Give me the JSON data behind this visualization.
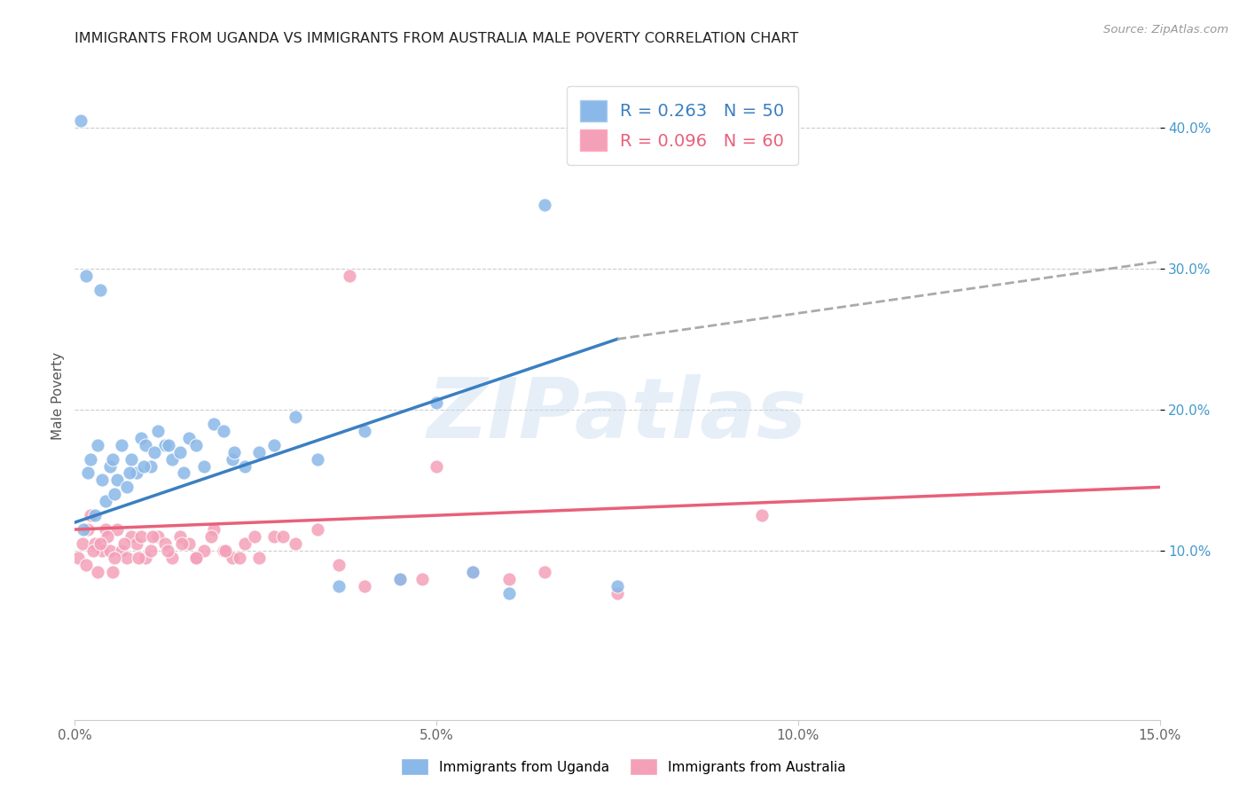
{
  "title": "IMMIGRANTS FROM UGANDA VS IMMIGRANTS FROM AUSTRALIA MALE POVERTY CORRELATION CHART",
  "source": "Source: ZipAtlas.com",
  "xlabel_ticks": [
    "0.0%",
    "5.0%",
    "10.0%",
    "15.0%"
  ],
  "xlabel_tick_vals": [
    0.0,
    5.0,
    10.0,
    15.0
  ],
  "ylabel_ticks": [
    "10.0%",
    "20.0%",
    "30.0%",
    "40.0%"
  ],
  "ylabel_tick_vals": [
    10.0,
    20.0,
    30.0,
    40.0
  ],
  "ylabel": "Male Poverty",
  "xlim": [
    0.0,
    15.0
  ],
  "ylim": [
    -2.0,
    44.0
  ],
  "uganda_color": "#8ab8e8",
  "australia_color": "#f4a0b8",
  "uganda_line_color": "#3a7fc1",
  "australia_line_color": "#e8607a",
  "dashed_line_color": "#aaaaaa",
  "watermark": "ZIPatlas",
  "watermark_color": "#c8ddf0",
  "legend_uganda_label": "R = 0.263   N = 50",
  "legend_australia_label": "R = 0.096   N = 60",
  "legend_label1": "Immigrants from Uganda",
  "legend_label2": "Immigrants from Australia",
  "uganda_line_x0": 0.0,
  "uganda_line_y0": 12.0,
  "uganda_line_x1": 7.5,
  "uganda_line_y1": 25.0,
  "australia_line_x0": 0.0,
  "australia_line_y0": 11.5,
  "australia_line_x1": 15.0,
  "australia_line_y1": 14.5,
  "dash_x0": 7.5,
  "dash_y0": 25.0,
  "dash_x1": 15.0,
  "dash_y1": 30.5,
  "uganda_x": [
    0.08,
    0.12,
    0.18,
    0.22,
    0.28,
    0.32,
    0.38,
    0.42,
    0.48,
    0.52,
    0.58,
    0.65,
    0.72,
    0.78,
    0.85,
    0.92,
    0.98,
    1.05,
    1.15,
    1.25,
    1.35,
    1.45,
    1.58,
    1.68,
    1.78,
    1.92,
    2.05,
    2.18,
    2.35,
    2.55,
    2.75,
    3.05,
    3.35,
    3.65,
    4.0,
    4.5,
    5.0,
    5.5,
    6.0,
    6.5,
    7.5,
    0.15,
    0.35,
    0.55,
    0.75,
    0.95,
    1.1,
    1.3,
    1.5,
    2.2
  ],
  "uganda_y": [
    40.5,
    11.5,
    15.5,
    16.5,
    12.5,
    17.5,
    15.0,
    13.5,
    16.0,
    16.5,
    15.0,
    17.5,
    14.5,
    16.5,
    15.5,
    18.0,
    17.5,
    16.0,
    18.5,
    17.5,
    16.5,
    17.0,
    18.0,
    17.5,
    16.0,
    19.0,
    18.5,
    16.5,
    16.0,
    17.0,
    17.5,
    19.5,
    16.5,
    7.5,
    18.5,
    8.0,
    20.5,
    8.5,
    7.0,
    34.5,
    7.5,
    29.5,
    28.5,
    14.0,
    15.5,
    16.0,
    17.0,
    17.5,
    15.5,
    17.0
  ],
  "australia_x": [
    0.05,
    0.1,
    0.15,
    0.18,
    0.22,
    0.28,
    0.32,
    0.38,
    0.42,
    0.48,
    0.52,
    0.58,
    0.65,
    0.72,
    0.78,
    0.85,
    0.92,
    0.98,
    1.05,
    1.15,
    1.25,
    1.35,
    1.45,
    1.58,
    1.68,
    1.78,
    1.92,
    2.05,
    2.18,
    2.35,
    2.55,
    2.75,
    3.05,
    3.35,
    3.65,
    4.0,
    4.5,
    5.0,
    5.5,
    6.0,
    7.5,
    9.5,
    0.25,
    0.45,
    0.68,
    0.88,
    1.08,
    1.28,
    1.48,
    1.68,
    1.88,
    2.08,
    2.28,
    2.48,
    3.8,
    4.8,
    6.5,
    0.35,
    0.55,
    2.88
  ],
  "australia_y": [
    9.5,
    10.5,
    9.0,
    11.5,
    12.5,
    10.5,
    8.5,
    10.0,
    11.5,
    10.0,
    8.5,
    11.5,
    10.0,
    9.5,
    11.0,
    10.5,
    11.0,
    9.5,
    10.0,
    11.0,
    10.5,
    9.5,
    11.0,
    10.5,
    9.5,
    10.0,
    11.5,
    10.0,
    9.5,
    10.5,
    9.5,
    11.0,
    10.5,
    11.5,
    9.0,
    7.5,
    8.0,
    16.0,
    8.5,
    8.0,
    7.0,
    12.5,
    10.0,
    11.0,
    10.5,
    9.5,
    11.0,
    10.0,
    10.5,
    9.5,
    11.0,
    10.0,
    9.5,
    11.0,
    29.5,
    8.0,
    8.5,
    10.5,
    9.5,
    11.0
  ]
}
